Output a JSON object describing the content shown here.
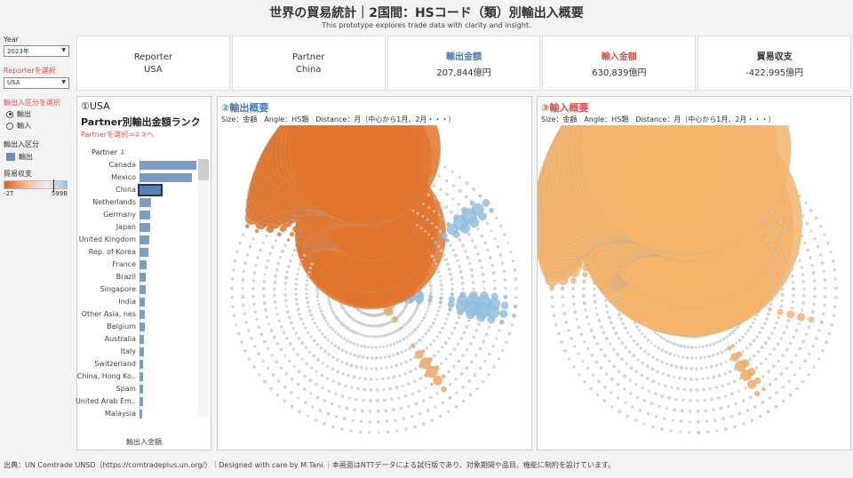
{
  "header": {
    "title": "世界の貿易統計｜2国間：HSコード（類）別輸出入概要",
    "subtitle": "This prototype explores trade data with clarity and insight."
  },
  "filters": {
    "year_label": "Year",
    "year_value": "2023年",
    "reporter_label": "Reporterを選択",
    "reporter_value": "USA",
    "flow_label": "輸出入区分を選択",
    "flow_options": [
      "輸出",
      "輸入"
    ],
    "flow_selected": "輸出",
    "flow_legend_label": "輸出入区分",
    "flow_legend_item": "輸出",
    "balance_label": "貿易収支",
    "balance_min": "-2T",
    "balance_max": "599B"
  },
  "kpis": {
    "reporter_label": "Reporter",
    "reporter_value": "USA",
    "partner_label": "Partner",
    "partner_value": "China",
    "export_label": "輸出金額",
    "export_value": "207,844億円",
    "import_label": "輸入金額",
    "import_value": "630,839億円",
    "balance_label": "貿易収支",
    "balance_value": "-422,995億円"
  },
  "panel1": {
    "heading1": "①USA",
    "heading2": "Partner別輸出金額ランク",
    "hint": "Partnerを選択⇒②③へ",
    "col_header": "Partner ⇩",
    "x_axis_title": "輸出入金額",
    "partners": [
      {
        "name": "Canada",
        "value": 1.0
      },
      {
        "name": "Mexico",
        "value": 0.92
      },
      {
        "name": "China",
        "value": 0.38,
        "selected": true
      },
      {
        "name": "Netherlands",
        "value": 0.2
      },
      {
        "name": "Germany",
        "value": 0.19
      },
      {
        "name": "Japan",
        "value": 0.18
      },
      {
        "name": "United Kingdom",
        "value": 0.17
      },
      {
        "name": "Rep. of Korea",
        "value": 0.16
      },
      {
        "name": "France",
        "value": 0.12
      },
      {
        "name": "Brazil",
        "value": 0.11
      },
      {
        "name": "Singapore",
        "value": 0.11
      },
      {
        "name": "India",
        "value": 0.1
      },
      {
        "name": "Other Asia, nes",
        "value": 0.09
      },
      {
        "name": "Belgium",
        "value": 0.09
      },
      {
        "name": "Australia",
        "value": 0.08
      },
      {
        "name": "Italy",
        "value": 0.08
      },
      {
        "name": "Switzerland",
        "value": 0.07
      },
      {
        "name": "China, Hong Ko..",
        "value": 0.07
      },
      {
        "name": "Spain",
        "value": 0.06
      },
      {
        "name": "United Arab Em..",
        "value": 0.06
      },
      {
        "name": "Malaysia",
        "value": 0.05
      }
    ]
  },
  "panel2": {
    "title": "②輸出概要",
    "subtitle": "Size：金額　Angle：HS類　Distance：月（中心から1月、2月・・・）"
  },
  "panel3": {
    "title": "③輸入概要",
    "subtitle": "Size：金額　Angle：HS類　Distance：月（中心から1月、2月・・・）"
  },
  "colors": {
    "export_blue": "#8fbfe0",
    "import_orange": "#e67a2e",
    "neutral": "#d8d8d8"
  },
  "footer": "出典：UN Comtrade UNSD（https://comtradeplus.un.org/）｜Designed with care by M.Tani.｜本画面はNTTデータによる試行版であり、対象期間や品目、機能に制約を設けています。"
}
